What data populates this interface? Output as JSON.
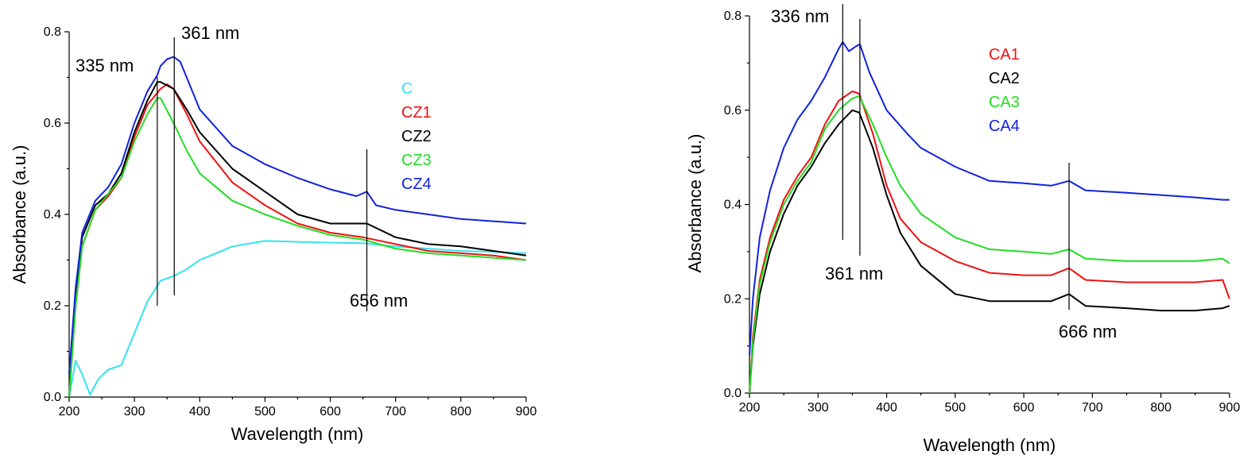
{
  "chart_data": [
    {
      "type": "line",
      "title": "",
      "xlabel": "Wavelength (nm)",
      "ylabel": "Absorbance (a.u.)",
      "xlim": [
        200,
        900
      ],
      "ylim": [
        0.0,
        0.8
      ],
      "xticks": [
        "200",
        "300",
        "400",
        "500",
        "600",
        "700",
        "800",
        "900"
      ],
      "yticks": [
        "0.0",
        "0.2",
        "0.4",
        "0.6",
        "0.8"
      ],
      "legend_position": "upper-right",
      "grid": false,
      "series": [
        {
          "name": "C",
          "color": "#33e5ee",
          "x": [
            200,
            210,
            220,
            232,
            245,
            260,
            280,
            300,
            320,
            340,
            360,
            380,
            400,
            450,
            500,
            550,
            600,
            650,
            700,
            750,
            800,
            850,
            900
          ],
          "y": [
            0.0,
            0.08,
            0.05,
            0.005,
            0.04,
            0.06,
            0.07,
            0.14,
            0.21,
            0.255,
            0.265,
            0.28,
            0.3,
            0.33,
            0.342,
            0.34,
            0.338,
            0.337,
            0.33,
            0.325,
            0.32,
            0.318,
            0.315
          ]
        },
        {
          "name": "CZ1",
          "color": "#ee1111",
          "x": [
            200,
            210,
            220,
            240,
            260,
            280,
            300,
            320,
            340,
            350,
            360,
            380,
            400,
            450,
            500,
            550,
            600,
            650,
            700,
            750,
            800,
            850,
            900
          ],
          "y": [
            0.0,
            0.2,
            0.33,
            0.41,
            0.44,
            0.48,
            0.57,
            0.64,
            0.675,
            0.685,
            0.675,
            0.62,
            0.56,
            0.47,
            0.42,
            0.38,
            0.36,
            0.35,
            0.335,
            0.32,
            0.315,
            0.31,
            0.3
          ]
        },
        {
          "name": "CZ2",
          "color": "#000000",
          "x": [
            200,
            210,
            220,
            240,
            260,
            280,
            300,
            320,
            335,
            340,
            360,
            380,
            400,
            450,
            500,
            550,
            600,
            656,
            700,
            750,
            800,
            850,
            900
          ],
          "y": [
            0.0,
            0.22,
            0.35,
            0.42,
            0.445,
            0.49,
            0.58,
            0.65,
            0.69,
            0.69,
            0.675,
            0.63,
            0.58,
            0.5,
            0.45,
            0.4,
            0.38,
            0.38,
            0.35,
            0.335,
            0.33,
            0.32,
            0.31
          ]
        },
        {
          "name": "CZ3",
          "color": "#22dd22",
          "x": [
            200,
            210,
            220,
            240,
            260,
            280,
            300,
            320,
            335,
            340,
            360,
            380,
            400,
            450,
            500,
            550,
            600,
            650,
            700,
            750,
            800,
            850,
            900
          ],
          "y": [
            0.0,
            0.2,
            0.33,
            0.41,
            0.445,
            0.48,
            0.56,
            0.62,
            0.655,
            0.655,
            0.6,
            0.54,
            0.49,
            0.43,
            0.4,
            0.375,
            0.355,
            0.345,
            0.325,
            0.315,
            0.31,
            0.305,
            0.3
          ]
        },
        {
          "name": "CZ4",
          "color": "#1122dd",
          "x": [
            200,
            210,
            220,
            240,
            260,
            280,
            300,
            320,
            335,
            340,
            350,
            360,
            370,
            380,
            400,
            450,
            500,
            550,
            600,
            640,
            656,
            670,
            700,
            750,
            800,
            850,
            900
          ],
          "y": [
            0.05,
            0.24,
            0.36,
            0.43,
            0.46,
            0.51,
            0.6,
            0.67,
            0.705,
            0.725,
            0.74,
            0.745,
            0.735,
            0.7,
            0.63,
            0.55,
            0.51,
            0.48,
            0.455,
            0.44,
            0.45,
            0.42,
            0.41,
            0.4,
            0.39,
            0.385,
            0.38
          ]
        }
      ],
      "annotations": [
        {
          "text": "335 nm",
          "x": 335
        },
        {
          "text": "361 nm",
          "x": 361
        },
        {
          "text": "656 nm",
          "x": 656
        }
      ]
    },
    {
      "type": "line",
      "title": "",
      "xlabel": "Wavelength (nm)",
      "ylabel": "Absorbance (a.u.)",
      "xlim": [
        200,
        900
      ],
      "ylim": [
        0.0,
        0.8
      ],
      "xticks": [
        "200",
        "300",
        "400",
        "500",
        "600",
        "700",
        "800",
        "900"
      ],
      "yticks": [
        "0.0",
        "0.2",
        "0.4",
        "0.6",
        "0.8"
      ],
      "legend_position": "upper-right",
      "grid": false,
      "series": [
        {
          "name": "CA1",
          "color": "#ee1111",
          "x": [
            200,
            205,
            215,
            230,
            250,
            270,
            290,
            310,
            330,
            350,
            360,
            380,
            400,
            420,
            450,
            500,
            550,
            600,
            640,
            666,
            690,
            750,
            800,
            850,
            890,
            900
          ],
          "y": [
            0.0,
            0.12,
            0.24,
            0.33,
            0.41,
            0.46,
            0.5,
            0.57,
            0.62,
            0.64,
            0.635,
            0.55,
            0.44,
            0.37,
            0.32,
            0.28,
            0.255,
            0.25,
            0.25,
            0.265,
            0.24,
            0.235,
            0.235,
            0.235,
            0.24,
            0.2
          ]
        },
        {
          "name": "CA2",
          "color": "#000000",
          "x": [
            200,
            205,
            215,
            230,
            250,
            270,
            290,
            310,
            330,
            350,
            360,
            380,
            400,
            420,
            450,
            500,
            550,
            600,
            640,
            666,
            690,
            750,
            800,
            850,
            890,
            900
          ],
          "y": [
            0.0,
            0.1,
            0.21,
            0.3,
            0.38,
            0.44,
            0.48,
            0.53,
            0.57,
            0.6,
            0.595,
            0.52,
            0.42,
            0.34,
            0.27,
            0.21,
            0.195,
            0.195,
            0.195,
            0.21,
            0.185,
            0.18,
            0.175,
            0.175,
            0.18,
            0.185
          ]
        },
        {
          "name": "CA3",
          "color": "#22dd22",
          "x": [
            200,
            205,
            215,
            230,
            250,
            270,
            290,
            310,
            330,
            350,
            360,
            380,
            400,
            420,
            450,
            500,
            550,
            600,
            640,
            666,
            690,
            750,
            800,
            850,
            890,
            900
          ],
          "y": [
            0.0,
            0.11,
            0.23,
            0.32,
            0.4,
            0.45,
            0.49,
            0.56,
            0.6,
            0.625,
            0.63,
            0.57,
            0.5,
            0.44,
            0.38,
            0.33,
            0.305,
            0.3,
            0.295,
            0.305,
            0.285,
            0.28,
            0.28,
            0.28,
            0.285,
            0.275
          ]
        },
        {
          "name": "CA4",
          "color": "#1122dd",
          "x": [
            200,
            205,
            215,
            230,
            250,
            270,
            290,
            310,
            330,
            336,
            345,
            355,
            361,
            375,
            400,
            430,
            450,
            500,
            550,
            600,
            640,
            666,
            690,
            750,
            800,
            850,
            890,
            900
          ],
          "y": [
            0.08,
            0.2,
            0.33,
            0.43,
            0.52,
            0.58,
            0.62,
            0.67,
            0.73,
            0.745,
            0.725,
            0.735,
            0.74,
            0.68,
            0.6,
            0.55,
            0.52,
            0.48,
            0.45,
            0.445,
            0.44,
            0.45,
            0.43,
            0.425,
            0.42,
            0.415,
            0.41,
            0.41
          ]
        }
      ],
      "annotations": [
        {
          "text": "336 nm",
          "x": 336
        },
        {
          "text": "361 nm",
          "x": 361
        },
        {
          "text": "666 nm",
          "x": 666
        }
      ]
    }
  ]
}
